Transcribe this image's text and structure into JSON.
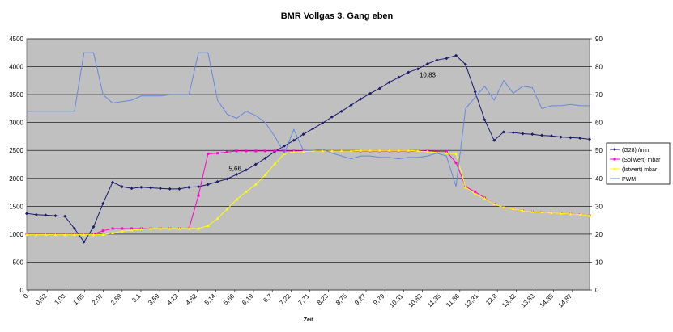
{
  "chart_data": {
    "type": "line",
    "title": "BMR Vollgas 3. Gang eben",
    "xlabel": "Zeit",
    "ylim": [
      0,
      4500
    ],
    "y2lim": [
      0,
      90
    ],
    "yticks": [
      0,
      500,
      1000,
      1500,
      2000,
      2500,
      3000,
      3500,
      4000,
      4500
    ],
    "y2ticks": [
      0,
      10,
      20,
      30,
      40,
      50,
      60,
      70,
      80,
      90
    ],
    "grid": true,
    "legend_position": "right",
    "x_tick_labels": [
      "0",
      "0,52",
      "1,03",
      "1,55",
      "2,07",
      "2,59",
      "3,1",
      "3,59",
      "4,12",
      "4,62",
      "5,14",
      "5,66",
      "6,19",
      "6,7",
      "7,22",
      "7,71",
      "8,23",
      "8,75",
      "9,27",
      "9,79",
      "10,31",
      "10,83",
      "11,35",
      "11,86",
      "12,31",
      "12,8",
      "13,32",
      "13,83",
      "14,35",
      "14,87"
    ],
    "series": [
      {
        "name": "(G28) /min",
        "color": "#1a1a6e",
        "marker": "diamond",
        "axis": "primary",
        "values": [
          1370,
          1350,
          1340,
          1330,
          1320,
          1100,
          860,
          1130,
          1550,
          1930,
          1850,
          1820,
          1840,
          1830,
          1820,
          1810,
          1810,
          1840,
          1850,
          1890,
          1940,
          1990,
          2070,
          2150,
          2250,
          2360,
          2480,
          2580,
          2680,
          2790,
          2890,
          2990,
          3100,
          3200,
          3310,
          3420,
          3520,
          3610,
          3720,
          3810,
          3900,
          3960,
          4050,
          4120,
          4150,
          4200,
          4040,
          3550,
          3050,
          2680,
          2830,
          2820,
          2800,
          2790,
          2770,
          2760,
          2740,
          2730,
          2720,
          2700
        ]
      },
      {
        "name": "(Sollwert) mbar",
        "color": "#ff00cc",
        "marker": "square",
        "axis": "primary",
        "values": [
          1000,
          1000,
          1000,
          1000,
          1000,
          1000,
          1000,
          1000,
          1060,
          1100,
          1100,
          1100,
          1100,
          1100,
          1100,
          1100,
          1100,
          1100,
          1690,
          2440,
          2450,
          2470,
          2490,
          2490,
          2490,
          2490,
          2490,
          2490,
          2490,
          2490,
          2490,
          2490,
          2490,
          2490,
          2490,
          2490,
          2490,
          2490,
          2490,
          2490,
          2490,
          2490,
          2490,
          2480,
          2480,
          2280,
          1850,
          1760,
          1650,
          1540,
          1480,
          1450,
          1420,
          1400,
          1390,
          1380,
          1370,
          1360,
          1350,
          1330
        ]
      },
      {
        "name": "(Istwert) mbar",
        "color": "#ffff00",
        "marker": "triangle",
        "axis": "primary",
        "values": [
          990,
          990,
          990,
          990,
          990,
          990,
          990,
          990,
          990,
          1020,
          1050,
          1070,
          1090,
          1100,
          1100,
          1100,
          1100,
          1100,
          1100,
          1150,
          1280,
          1450,
          1620,
          1760,
          1890,
          2060,
          2260,
          2440,
          2470,
          2480,
          2490,
          2490,
          2490,
          2490,
          2490,
          2500,
          2500,
          2500,
          2500,
          2500,
          2500,
          2490,
          2480,
          2460,
          2450,
          2440,
          1840,
          1720,
          1640,
          1540,
          1480,
          1450,
          1420,
          1400,
          1390,
          1380,
          1370,
          1360,
          1350,
          1330
        ]
      },
      {
        "name": "PWM",
        "color": "#6688dd",
        "marker": "none",
        "axis": "secondary",
        "values": [
          64,
          64,
          64,
          64,
          64,
          64,
          85,
          85,
          70,
          67,
          67.5,
          68,
          69.5,
          69.5,
          69.5,
          70,
          70,
          70,
          85,
          85,
          68,
          63,
          61.5,
          64,
          62.5,
          60,
          55,
          49,
          57.5,
          50,
          50,
          50.5,
          49,
          48,
          47,
          48,
          48,
          47.5,
          47.5,
          47,
          47.5,
          47.5,
          48,
          49,
          48,
          37,
          65,
          69,
          73,
          68,
          75,
          70.5,
          73,
          72.5,
          65,
          66,
          66,
          66.5,
          66,
          66
        ]
      }
    ],
    "annotations": [
      {
        "text": "5,66",
        "series": 0,
        "index": 21
      },
      {
        "text": "10,83",
        "series": 0,
        "index": 41
      }
    ]
  }
}
